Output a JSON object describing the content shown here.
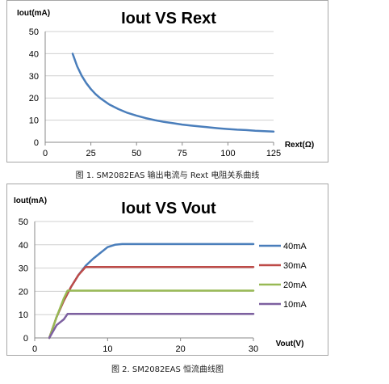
{
  "chart_data": [
    {
      "type": "line",
      "title": "Iout VS Rext",
      "ylabel": "Iout(mA)",
      "xlabel": "Rext(Ω)",
      "xlim": [
        0,
        125
      ],
      "ylim": [
        0,
        50
      ],
      "xticks": [
        0,
        25,
        50,
        75,
        100,
        125
      ],
      "yticks": [
        0,
        10,
        20,
        30,
        40,
        50
      ],
      "grid": "horizontal",
      "series": [
        {
          "color": "#4a7ebb",
          "x": [
            15,
            17.5,
            20,
            22.5,
            25,
            27.5,
            30,
            35,
            40,
            45,
            50,
            55,
            60,
            65,
            70,
            75,
            80,
            85,
            90,
            95,
            100,
            105,
            110,
            115,
            120,
            125
          ],
          "y": [
            40,
            34.3,
            30,
            26.7,
            24,
            21.8,
            20,
            17.1,
            15,
            13.3,
            12,
            10.9,
            10,
            9.2,
            8.6,
            8,
            7.5,
            7.1,
            6.7,
            6.3,
            6,
            5.7,
            5.5,
            5.2,
            5,
            4.8
          ]
        }
      ]
    },
    {
      "type": "line",
      "title": "Iout VS Vout",
      "ylabel": "Iout(mA)",
      "xlabel": "Vout(V)",
      "xlim": [
        0,
        30
      ],
      "ylim": [
        0,
        50
      ],
      "xticks": [
        0,
        10,
        20,
        30
      ],
      "yticks": [
        0,
        10,
        20,
        30,
        40,
        50
      ],
      "grid": "horizontal",
      "legend": "right",
      "series": [
        {
          "name": "40mA",
          "color": "#4a7ebb",
          "x": [
            2,
            3,
            4,
            5,
            6,
            7,
            8,
            9,
            10,
            11,
            12,
            13,
            15,
            20,
            25,
            30
          ],
          "y": [
            0,
            9,
            16,
            22,
            27,
            31,
            34,
            36.5,
            39,
            40,
            40.3,
            40.3,
            40.3,
            40.3,
            40.3,
            40.3
          ]
        },
        {
          "name": "30mA",
          "color": "#be4b48",
          "x": [
            2,
            3,
            4,
            5,
            6,
            7,
            8,
            10,
            15,
            20,
            25,
            30
          ],
          "y": [
            0,
            9,
            16,
            22,
            27,
            30.5,
            30.5,
            30.5,
            30.5,
            30.5,
            30.5,
            30.5
          ]
        },
        {
          "name": "20mA",
          "color": "#98b954",
          "x": [
            2,
            3,
            4,
            4.5,
            5,
            10,
            15,
            20,
            25,
            30
          ],
          "y": [
            0,
            9,
            17,
            20.3,
            20.3,
            20.3,
            20.3,
            20.3,
            20.3,
            20.3
          ]
        },
        {
          "name": "10mA",
          "color": "#7d60a0",
          "x": [
            2,
            3,
            4,
            4.5,
            5,
            10,
            15,
            20,
            25,
            30
          ],
          "y": [
            0,
            5.5,
            8,
            10.3,
            10.3,
            10.3,
            10.3,
            10.3,
            10.3,
            10.3
          ]
        }
      ]
    }
  ],
  "captions": {
    "fig1": "图 1. SM2082EAS 输出电流与 Rext 电阻关系曲线",
    "fig2": "图 2. SM2082EAS 恒流曲线图"
  }
}
